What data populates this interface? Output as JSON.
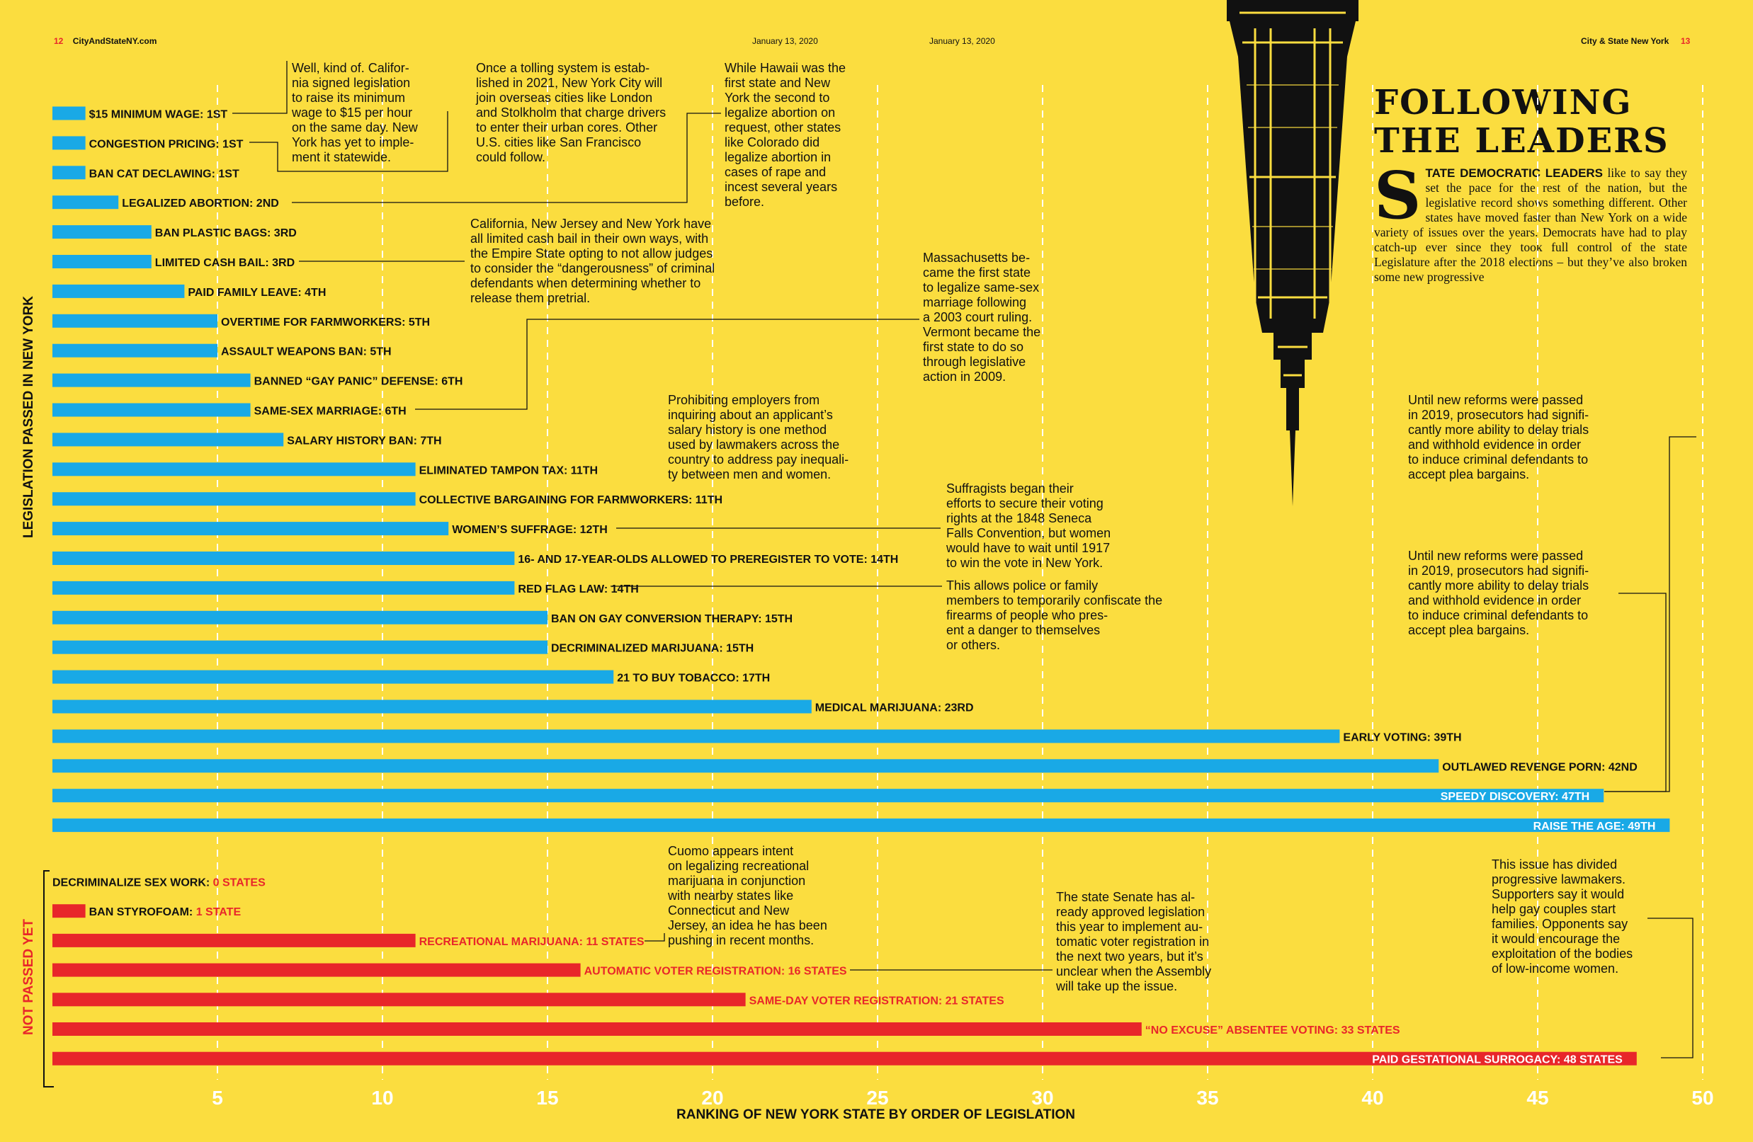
{
  "header": {
    "left_page": "12",
    "left_site": "CityAndStateNY.com",
    "left_date": "January 13, 2020",
    "right_date": "January 13, 2020",
    "right_site": "City & State New York",
    "right_page": "13"
  },
  "article": {
    "headline_line1": "FOLLOWING",
    "headline_line2": "THE LEADERS",
    "dropcap": "S",
    "lead": "TATE DEMOCRATIC LEADERS",
    "body": " like to say they set the pace for the rest of the nation, but the legislative record shows something different. Other states have moved faster than New York on a wide variety of issues over the years. Democrats have had to play catch-up ever since they took full control of the state Legislature after the 2018 elections – but they’ve also broken some new progressive"
  },
  "colors": {
    "background": "#FBDD3F",
    "passed": "#19A9E6",
    "not_passed": "#E8262A",
    "grid": "#FFFFFF",
    "text": "#111111"
  },
  "notes": [
    {
      "id": "min-wage",
      "lines": [
        "Well, kind of. Califor-",
        "nia signed legislation",
        "to raise its minimum",
        "wage to $15 per hour",
        "on the same day. New",
        "York has yet to imple-",
        "ment it statewide."
      ]
    },
    {
      "id": "congestion",
      "lines": [
        "Once a tolling system is estab-",
        "lished in 2021, New York City will",
        "join overseas cities like London",
        "and Stolkholm that charge drivers",
        "to enter their urban cores. Other",
        "U.S. cities like San Francisco",
        "could follow."
      ]
    },
    {
      "id": "abortion",
      "lines": [
        "While Hawaii was the",
        "first state and New",
        "York the second to",
        "legalize abortion on",
        "request, other states",
        "like Colorado did",
        "legalize abortion in",
        "cases of rape and",
        "incest several years",
        "before."
      ]
    },
    {
      "id": "cash-bail",
      "lines": [
        "California, New Jersey and New York have",
        "all limited cash bail in their own ways, with",
        "the Empire State opting to not allow judges",
        "to consider the “dangerousness” of criminal",
        "defendants when determining whether to",
        "release them pretrial."
      ]
    },
    {
      "id": "same-sex",
      "lines": [
        "Massachusetts be-",
        "came the first state",
        "to legalize same-sex",
        "marriage following",
        "a 2003 court ruling.",
        "Vermont became the",
        "first state to do so",
        "through legislative",
        "action in 2009."
      ]
    },
    {
      "id": "salary",
      "lines": [
        "Prohibiting employers from",
        "inquiring about an applicant’s",
        "salary history is one method",
        "used by lawmakers across the",
        "country to address pay inequali-",
        "ty between men and women."
      ]
    },
    {
      "id": "suffrage",
      "lines": [
        "Suffragists began their",
        "efforts to secure their voting",
        "rights at the 1848 Seneca",
        "Falls Convention, but women",
        "would have to wait until 1917",
        "to win the vote in New York."
      ]
    },
    {
      "id": "red-flag",
      "lines": [
        "This allows police or family",
        "members to temporarily confiscate the",
        "firearms of people who pres-",
        "ent a danger to themselves",
        "or others."
      ]
    },
    {
      "id": "raise-age",
      "lines": [
        "Until new reforms were passed",
        "in 2019, prosecutors had signifi-",
        "cantly more ability to delay trials",
        "and withhold evidence in order",
        "to induce criminal defendants to",
        "accept plea bargains."
      ]
    },
    {
      "id": "discovery",
      "lines": [
        "Until new reforms were passed",
        "in 2019, prosecutors had signifi-",
        "cantly more ability to delay trials",
        "and withhold evidence in order",
        "to induce criminal defendants to",
        "accept plea bargains."
      ]
    },
    {
      "id": "rec-marijuana",
      "lines": [
        "Cuomo appears intent",
        "on legalizing recreational",
        "marijuana in conjunction",
        "with nearby states like",
        "Connecticut and New",
        "Jersey, an idea he has been",
        "pushing in recent months."
      ]
    },
    {
      "id": "voter-reg",
      "lines": [
        "The state Senate has al-",
        "ready approved legislation",
        "this year to implement au-",
        "tomatic voter registration in",
        "the next two years, but it’s",
        "unclear when the Assembly",
        "will take up the issue."
      ]
    },
    {
      "id": "surrogacy",
      "lines": [
        "This issue has divided",
        "progressive lawmakers.",
        "Supporters say it would",
        "help gay couples start",
        "families. Opponents say",
        "it would encourage the",
        "exploitation of the bodies",
        "of low-income women."
      ]
    }
  ],
  "chart_data": {
    "type": "bar",
    "orientation": "horizontal",
    "xlabel": "RANKING OF NEW YORK STATE BY ORDER OF LEGISLATION",
    "xlim": [
      0,
      50
    ],
    "xticks": [
      5,
      10,
      15,
      20,
      25,
      30,
      35,
      40,
      45,
      50
    ],
    "grid": true,
    "series": [
      {
        "name": "LEGISLATION PASSED IN NEW YORK",
        "color": "#19A9E6",
        "categories": [
          "$15 MINIMUM WAGE: 1ST",
          "CONGESTION PRICING: 1ST",
          "BAN CAT DECLAWING: 1ST",
          "LEGALIZED ABORTION: 2ND",
          "BAN PLASTIC BAGS: 3RD",
          "LIMITED CASH BAIL: 3RD",
          "PAID FAMILY LEAVE: 4TH",
          "OVERTIME FOR FARMWORKERS: 5TH",
          "ASSAULT WEAPONS BAN: 5TH",
          "BANNED “GAY PANIC” DEFENSE: 6TH",
          "SAME-SEX MARRIAGE: 6TH",
          "SALARY HISTORY BAN: 7TH",
          "ELIMINATED TAMPON TAX: 11TH",
          "COLLECTIVE BARGAINING FOR FARMWORKERS: 11TH",
          "WOMEN’S SUFFRAGE: 12TH",
          "16- AND  17-YEAR-OLDS  ALLOWED  TO PREREGISTER TO VOTE: 14TH",
          "RED FLAG LAW: 14TH",
          "BAN ON GAY CONVERSION THERAPY: 15TH",
          "DECRIMINALIZED MARIJUANA: 15TH",
          "21 TO BUY TOBACCO: 17TH",
          "MEDICAL MARIJUANA: 23RD",
          "EARLY VOTING: 39TH",
          "OUTLAWED REVENGE PORN: 42ND",
          "SPEEDY DISCOVERY: 47TH",
          "RAISE THE AGE: 49TH"
        ],
        "values": [
          1,
          1,
          1,
          2,
          3,
          3,
          4,
          5,
          5,
          6,
          6,
          7,
          11,
          11,
          12,
          14,
          14,
          15,
          15,
          17,
          23,
          39,
          42,
          47,
          49
        ]
      },
      {
        "name": "NOT PASSED YET",
        "color": "#E8262A",
        "categories": [
          "DECRIMINALIZE SEX WORK:",
          "BAN STYROFOAM:",
          "RECREATIONAL MARIJUANA: 11 STATES",
          "AUTOMATIC VOTER REGISTRATION: 16 STATES",
          "SAME-DAY VOTER REGISTRATION: 21 STATES",
          "“NO EXCUSE” ABSENTEE VOTING: 33 STATES",
          "PAID GESTATIONAL SURROGACY: 48 STATES"
        ],
        "category_suffixes": [
          "0 STATES",
          "1 STATE",
          "",
          "",
          "",
          "",
          ""
        ],
        "values": [
          0,
          1,
          11,
          16,
          21,
          33,
          48
        ]
      }
    ]
  }
}
